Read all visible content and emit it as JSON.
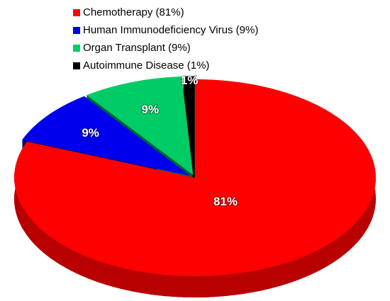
{
  "chart_data": {
    "type": "pie",
    "categories": [
      "Chemotherapy (81%)",
      "Human Immunodeficiency Virus (9%)",
      "Organ Transplant (9%)",
      "Autoimmune Disease (1%)"
    ],
    "values": [
      81,
      9,
      9,
      1
    ],
    "value_labels": [
      "81%",
      "9%",
      "9%",
      "1%"
    ],
    "colors": [
      "#ff0000",
      "#0000ee",
      "#00cc66",
      "#000000"
    ],
    "legend": "top"
  }
}
